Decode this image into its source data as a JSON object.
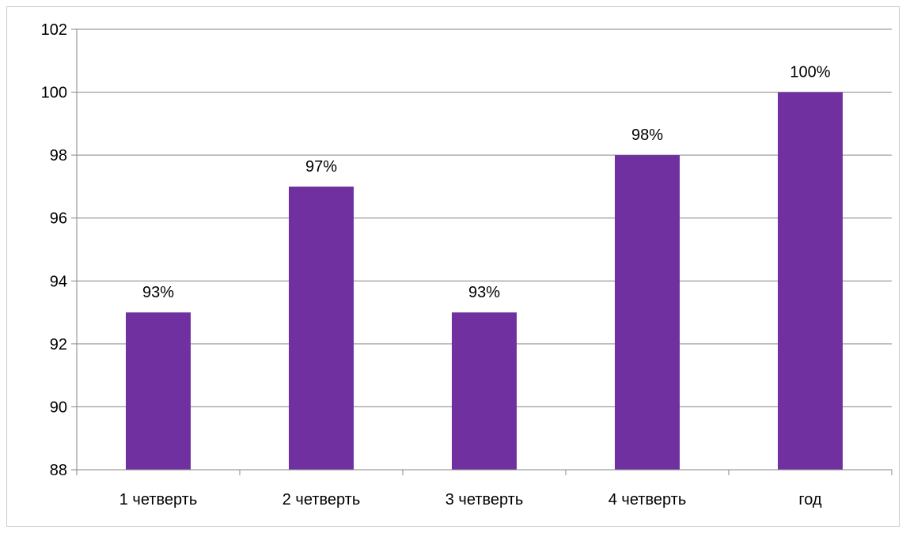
{
  "chart_data": {
    "type": "bar",
    "categories": [
      "1 четверть",
      "2 четверть",
      "3 четверть",
      "4 четверть",
      "год"
    ],
    "values": [
      93,
      97,
      93,
      98,
      100
    ],
    "data_labels": [
      "93%",
      "97%",
      "93%",
      "98%",
      "100%"
    ],
    "ylim": [
      88,
      102
    ],
    "yticks": [
      88,
      90,
      92,
      94,
      96,
      98,
      100,
      102
    ],
    "title": "",
    "xlabel": "",
    "ylabel": "",
    "grid": true,
    "legend": "none",
    "colors": {
      "bar": "#7030A0",
      "grid": "#868686",
      "axis": "#868686"
    }
  }
}
